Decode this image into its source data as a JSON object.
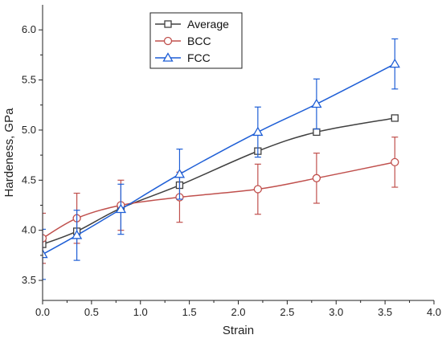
{
  "chart_data": {
    "type": "line",
    "xlabel": "Strain",
    "ylabel": "Hardeness, GPa",
    "xlim": [
      0,
      4.0
    ],
    "ylim": [
      3.3,
      6.25
    ],
    "x_ticks": [
      "0.0",
      "0.5",
      "1.0",
      "1.5",
      "2.0",
      "2.5",
      "3.0",
      "3.5",
      "4.0"
    ],
    "y_ticks": [
      "3.5",
      "4.0",
      "4.5",
      "5.0",
      "5.5",
      "6.0"
    ],
    "grid": false,
    "legend_position": "top-center",
    "series": [
      {
        "name": "Average",
        "color": "#404040",
        "marker": "square",
        "x": [
          0.0,
          0.35,
          0.8,
          1.4,
          2.2,
          2.8,
          3.6
        ],
        "y": [
          3.86,
          3.99,
          4.22,
          4.45,
          4.79,
          4.98,
          5.12
        ],
        "err": [
          0,
          0,
          0,
          0,
          0,
          0,
          0
        ]
      },
      {
        "name": "BCC",
        "color": "#c0504d",
        "marker": "circle",
        "x": [
          0.0,
          0.35,
          0.8,
          1.4,
          2.2,
          2.8,
          3.6
        ],
        "y": [
          3.92,
          4.12,
          4.25,
          4.33,
          4.41,
          4.52,
          4.68
        ],
        "err": [
          0.25,
          0.25,
          0.25,
          0.25,
          0.25,
          0.25,
          0.25
        ]
      },
      {
        "name": "FCC",
        "color": "#1f5fd6",
        "marker": "triangle",
        "x": [
          0.0,
          0.35,
          0.8,
          1.4,
          2.2,
          2.8,
          3.6
        ],
        "y": [
          3.76,
          3.95,
          4.21,
          4.56,
          4.98,
          5.26,
          5.66
        ],
        "err": [
          0.25,
          0.25,
          0.25,
          0.25,
          0.25,
          0.25,
          0.25
        ]
      }
    ]
  }
}
